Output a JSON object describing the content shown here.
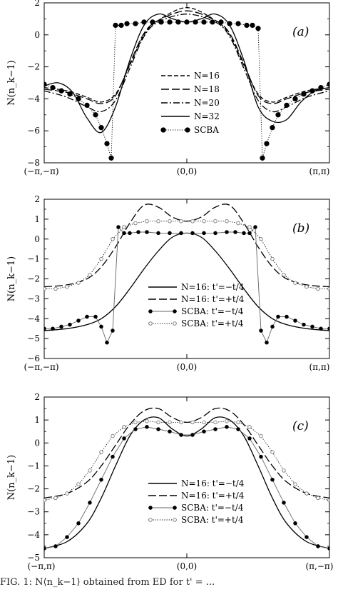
{
  "figure": {
    "caption_fragment": "FIG. 1: N⟨n_k−1⟩ obtained from ED for t' = ..."
  },
  "chart_data": [
    {
      "type": "line",
      "panel_label": "(a)",
      "ylabel": "N(n_k−1)",
      "ylim": [
        -8,
        2
      ],
      "yticks": [
        "−8",
        "−6",
        "−4",
        "−2",
        "0",
        "2"
      ],
      "ytick_values": [
        -8,
        -6,
        -4,
        -2,
        0,
        2
      ],
      "xticks": [
        "(−π,−π)",
        "(0,0)",
        "(π,π)"
      ],
      "xlim": [
        0,
        1
      ],
      "legend_position": "center",
      "series": [
        {
          "name": "N=16",
          "style": "dash",
          "x": [
            0,
            0.08,
            0.15,
            0.2,
            0.25,
            0.3,
            0.35,
            0.4,
            0.5,
            0.6,
            0.65,
            0.7,
            0.75,
            0.8,
            0.85,
            0.92,
            1
          ],
          "y": [
            -3.3,
            -3.5,
            -3.9,
            -4.2,
            -3.7,
            -1.9,
            0.0,
            0.9,
            1.7,
            0.9,
            0.0,
            -1.9,
            -3.7,
            -4.2,
            -3.9,
            -3.5,
            -3.3
          ]
        },
        {
          "name": "N=18",
          "style": "longdash",
          "x": [
            0,
            0.08,
            0.15,
            0.2,
            0.25,
            0.3,
            0.35,
            0.4,
            0.5,
            0.6,
            0.65,
            0.7,
            0.75,
            0.8,
            0.85,
            0.92,
            1
          ],
          "y": [
            -3.4,
            -3.6,
            -4.0,
            -4.3,
            -3.8,
            -1.8,
            0.1,
            0.9,
            1.5,
            0.9,
            0.1,
            -1.8,
            -3.8,
            -4.3,
            -4.0,
            -3.6,
            -3.4
          ]
        },
        {
          "name": "N=20",
          "style": "dashdot",
          "x": [
            0,
            0.08,
            0.15,
            0.2,
            0.25,
            0.3,
            0.35,
            0.4,
            0.5,
            0.6,
            0.65,
            0.7,
            0.75,
            0.8,
            0.85,
            0.92,
            1
          ],
          "y": [
            -3.5,
            -3.9,
            -4.5,
            -4.8,
            -4.1,
            -2.1,
            -0.1,
            0.8,
            1.3,
            0.8,
            -0.1,
            -2.1,
            -4.1,
            -4.8,
            -4.5,
            -3.9,
            -3.5
          ]
        },
        {
          "name": "N=32",
          "style": "solid",
          "x": [
            0,
            0.05,
            0.1,
            0.15,
            0.2,
            0.25,
            0.3,
            0.35,
            0.4,
            0.45,
            0.5,
            0.55,
            0.6,
            0.65,
            0.7,
            0.75,
            0.8,
            0.85,
            0.9,
            0.95,
            1
          ],
          "y": [
            -3.2,
            -3.0,
            -3.6,
            -5.2,
            -6.1,
            -4.5,
            -1.6,
            0.6,
            1.3,
            1.0,
            0.8,
            1.0,
            1.3,
            0.6,
            -1.6,
            -4.5,
            -5.4,
            -5.3,
            -4.2,
            -3.5,
            -3.3
          ]
        },
        {
          "name": "SCBA",
          "style": "dotted-marker",
          "x": [
            0,
            0.03,
            0.06,
            0.09,
            0.12,
            0.15,
            0.18,
            0.2,
            0.22,
            0.235,
            0.25,
            0.27,
            0.29,
            0.32,
            0.35,
            0.38,
            0.41,
            0.44,
            0.47,
            0.5,
            0.53,
            0.56,
            0.59,
            0.62,
            0.65,
            0.68,
            0.71,
            0.73,
            0.75,
            0.765,
            0.78,
            0.8,
            0.82,
            0.85,
            0.88,
            0.91,
            0.94,
            0.97,
            1
          ],
          "y": [
            -3.1,
            -3.3,
            -3.5,
            -3.7,
            -4.0,
            -4.4,
            -5.0,
            -5.8,
            -6.8,
            -7.7,
            0.6,
            0.6,
            0.7,
            0.7,
            0.8,
            0.8,
            0.8,
            0.8,
            0.8,
            0.8,
            0.8,
            0.8,
            0.8,
            0.8,
            0.7,
            0.7,
            0.6,
            0.6,
            0.4,
            -7.7,
            -6.8,
            -5.8,
            -5.0,
            -4.4,
            -4.0,
            -3.7,
            -3.5,
            -3.3,
            -3.1
          ]
        }
      ]
    },
    {
      "type": "line",
      "panel_label": "(b)",
      "ylabel": "N(n_k−1)",
      "ylim": [
        -6,
        2
      ],
      "yticks": [
        "−6",
        "−5",
        "−4",
        "−3",
        "−2",
        "−1",
        "0",
        "1",
        "2"
      ],
      "ytick_values": [
        -6,
        -5,
        -4,
        -3,
        -2,
        -1,
        0,
        1,
        2
      ],
      "xticks": [
        "(−π,−π)",
        "(0,0)",
        "(π,π)"
      ],
      "xlim": [
        0,
        1
      ],
      "legend_position": "bottom-right",
      "series": [
        {
          "name": "N=16: t'=−t/4",
          "style": "solid",
          "x": [
            0,
            0.08,
            0.15,
            0.2,
            0.25,
            0.3,
            0.35,
            0.4,
            0.45,
            0.5,
            0.55,
            0.6,
            0.65,
            0.7,
            0.75,
            0.8,
            0.85,
            0.92,
            1
          ],
          "y": [
            -4.6,
            -4.5,
            -4.3,
            -4.0,
            -3.4,
            -2.5,
            -1.5,
            -0.6,
            0.1,
            0.3,
            0.1,
            -0.6,
            -1.5,
            -2.5,
            -3.4,
            -4.0,
            -4.3,
            -4.5,
            -4.6
          ]
        },
        {
          "name": "N=16: t'=+t/4",
          "style": "longdash",
          "x": [
            0,
            0.08,
            0.15,
            0.2,
            0.25,
            0.3,
            0.35,
            0.4,
            0.45,
            0.5,
            0.55,
            0.6,
            0.65,
            0.7,
            0.75,
            0.8,
            0.85,
            0.92,
            1
          ],
          "y": [
            -2.4,
            -2.3,
            -2.0,
            -1.4,
            -0.4,
            0.8,
            1.7,
            1.6,
            1.1,
            0.9,
            1.1,
            1.6,
            1.7,
            0.8,
            -0.4,
            -1.4,
            -2.0,
            -2.3,
            -2.4
          ]
        },
        {
          "name": "SCBA: t'=−t/4",
          "style": "solid-marker-filled",
          "x": [
            0,
            0.03,
            0.06,
            0.09,
            0.12,
            0.15,
            0.18,
            0.2,
            0.22,
            0.24,
            0.26,
            0.28,
            0.3,
            0.33,
            0.36,
            0.4,
            0.44,
            0.48,
            0.52,
            0.56,
            0.6,
            0.64,
            0.67,
            0.7,
            0.72,
            0.74,
            0.76,
            0.78,
            0.8,
            0.82,
            0.85,
            0.88,
            0.91,
            0.94,
            0.97,
            1
          ],
          "y": [
            -4.5,
            -4.5,
            -4.4,
            -4.3,
            -4.1,
            -3.9,
            -3.9,
            -4.4,
            -5.2,
            -4.6,
            0.6,
            0.3,
            0.3,
            0.35,
            0.35,
            0.3,
            0.3,
            0.3,
            0.3,
            0.3,
            0.3,
            0.35,
            0.35,
            0.3,
            0.3,
            0.6,
            -4.6,
            -5.2,
            -4.4,
            -3.9,
            -3.9,
            -4.1,
            -4.3,
            -4.4,
            -4.5,
            -4.5
          ]
        },
        {
          "name": "SCBA: t'=+t/4",
          "style": "dotted-marker-open",
          "x": [
            0,
            0.04,
            0.08,
            0.12,
            0.16,
            0.2,
            0.24,
            0.28,
            0.32,
            0.36,
            0.4,
            0.44,
            0.48,
            0.52,
            0.56,
            0.6,
            0.64,
            0.68,
            0.72,
            0.76,
            0.8,
            0.84,
            0.88,
            0.92,
            0.96,
            1
          ],
          "y": [
            -2.5,
            -2.5,
            -2.4,
            -2.2,
            -1.8,
            -1.0,
            0.0,
            0.6,
            0.8,
            0.9,
            0.9,
            0.9,
            0.9,
            0.9,
            0.9,
            0.9,
            0.9,
            0.8,
            0.6,
            0.0,
            -1.0,
            -1.8,
            -2.2,
            -2.4,
            -2.5,
            -2.5
          ]
        }
      ]
    },
    {
      "type": "line",
      "panel_label": "(c)",
      "ylabel": "N(n_k−1)",
      "ylim": [
        -5,
        2
      ],
      "yticks": [
        "−5",
        "−4",
        "−3",
        "−2",
        "−1",
        "0",
        "1",
        "2"
      ],
      "ytick_values": [
        -5,
        -4,
        -3,
        -2,
        -1,
        0,
        1,
        2
      ],
      "xticks": [
        "(−π,π)",
        "(0,0)",
        "(π,−π)"
      ],
      "xlim": [
        0,
        1
      ],
      "legend_position": "bottom-right",
      "series": [
        {
          "name": "N=16: t'=−t/4",
          "style": "solid",
          "x": [
            0,
            0.08,
            0.15,
            0.2,
            0.25,
            0.3,
            0.35,
            0.4,
            0.45,
            0.5,
            0.55,
            0.6,
            0.65,
            0.7,
            0.75,
            0.8,
            0.85,
            0.92,
            1
          ],
          "y": [
            -4.6,
            -4.3,
            -3.5,
            -2.4,
            -1.0,
            0.3,
            1.0,
            1.1,
            0.6,
            0.3,
            0.6,
            1.1,
            1.0,
            0.3,
            -1.0,
            -2.4,
            -3.5,
            -4.3,
            -4.6
          ]
        },
        {
          "name": "N=16: t'=+t/4",
          "style": "longdash",
          "x": [
            0,
            0.08,
            0.15,
            0.2,
            0.25,
            0.3,
            0.35,
            0.4,
            0.45,
            0.5,
            0.55,
            0.6,
            0.65,
            0.7,
            0.75,
            0.8,
            0.85,
            0.92,
            1
          ],
          "y": [
            -2.4,
            -2.2,
            -1.7,
            -1.0,
            -0.1,
            0.8,
            1.4,
            1.5,
            1.1,
            0.9,
            1.1,
            1.5,
            1.4,
            0.8,
            -0.1,
            -1.0,
            -1.7,
            -2.2,
            -2.4
          ]
        },
        {
          "name": "SCBA: t'=−t/4",
          "style": "solid-marker-filled",
          "x": [
            0,
            0.04,
            0.08,
            0.12,
            0.16,
            0.2,
            0.24,
            0.28,
            0.32,
            0.36,
            0.4,
            0.44,
            0.48,
            0.52,
            0.56,
            0.6,
            0.64,
            0.68,
            0.72,
            0.76,
            0.8,
            0.84,
            0.88,
            0.92,
            0.96,
            1
          ],
          "y": [
            -4.6,
            -4.5,
            -4.1,
            -3.5,
            -2.6,
            -1.6,
            -0.6,
            0.2,
            0.6,
            0.7,
            0.6,
            0.5,
            0.35,
            0.35,
            0.5,
            0.6,
            0.7,
            0.6,
            0.2,
            -0.6,
            -1.6,
            -2.6,
            -3.5,
            -4.1,
            -4.5,
            -4.6
          ]
        },
        {
          "name": "SCBA: t'=+t/4",
          "style": "dotted-marker-open",
          "x": [
            0,
            0.04,
            0.08,
            0.12,
            0.16,
            0.2,
            0.24,
            0.28,
            0.32,
            0.36,
            0.4,
            0.44,
            0.48,
            0.52,
            0.56,
            0.6,
            0.64,
            0.68,
            0.72,
            0.76,
            0.8,
            0.84,
            0.88,
            0.92,
            0.96,
            1
          ],
          "y": [
            -2.5,
            -2.4,
            -2.2,
            -1.8,
            -1.2,
            -0.4,
            0.3,
            0.7,
            0.9,
            0.95,
            0.9,
            0.9,
            0.9,
            0.9,
            0.9,
            0.9,
            0.95,
            0.9,
            0.7,
            0.3,
            -0.4,
            -1.2,
            -1.8,
            -2.2,
            -2.4,
            -2.5
          ]
        }
      ]
    }
  ]
}
